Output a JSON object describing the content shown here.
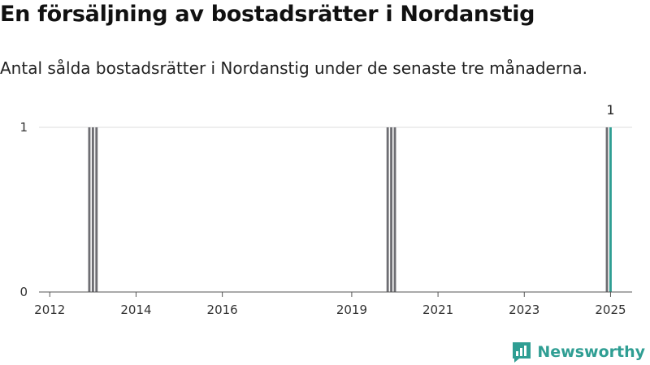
{
  "header": {
    "title": "En försäljning av bostadsrätter i Nordanstig",
    "subtitle": "Antal sålda bostadsrätter i Nordanstig under de senaste tre månaderna."
  },
  "brand": {
    "name": "Newsworthy",
    "icon": "newsworthy-logo-icon",
    "color": "#2f9e93"
  },
  "chart_data": {
    "type": "bar",
    "x_type": "date",
    "x_range": [
      "2011-10",
      "2025-07"
    ],
    "ylim": [
      0,
      1
    ],
    "y_ticks": [
      0,
      1
    ],
    "x_ticks": [
      "2012",
      "2014",
      "2016",
      "2019",
      "2021",
      "2023",
      "2025"
    ],
    "grid": true,
    "colors": {
      "history": "#6e6e73",
      "latest": "#2f9e93"
    },
    "values": [
      {
        "x": "2012-12",
        "y": 1
      },
      {
        "x": "2013-01",
        "y": 1
      },
      {
        "x": "2013-02",
        "y": 1
      },
      {
        "x": "2019-11",
        "y": 1
      },
      {
        "x": "2019-12",
        "y": 1
      },
      {
        "x": "2020-01",
        "y": 1
      },
      {
        "x": "2024-12",
        "y": 1
      },
      {
        "x": "2025-01",
        "y": 1,
        "highlight": true,
        "label": "1"
      }
    ]
  }
}
